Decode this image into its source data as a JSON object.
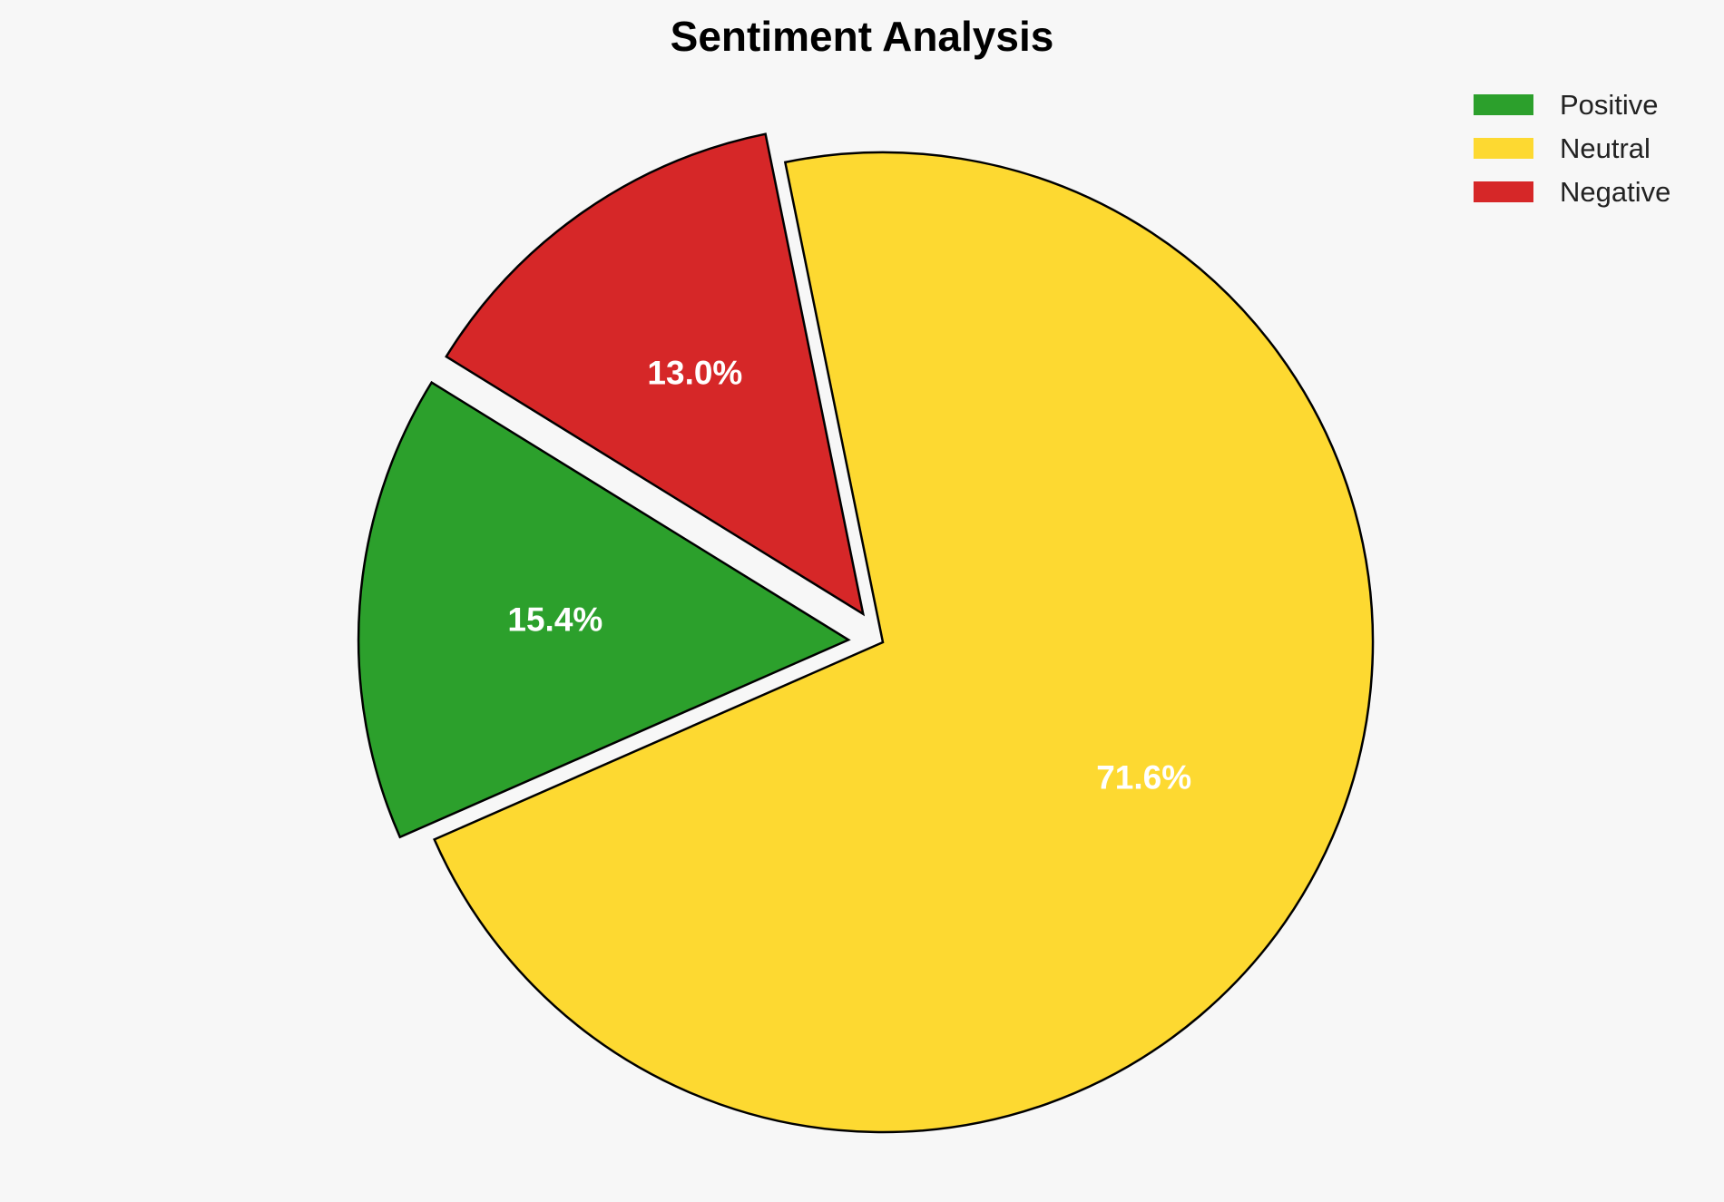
{
  "chart_data": {
    "type": "pie",
    "title": "Sentiment Analysis",
    "start_angle_deg": 148.3,
    "direction": "counterclockwise",
    "legend_position": "top-right",
    "slices": [
      {
        "label": "Positive",
        "value": 15.4,
        "display": "15.4%",
        "color": "#2ca02c",
        "exploded": true
      },
      {
        "label": "Neutral",
        "value": 71.6,
        "display": "71.6%",
        "color": "#fdd931",
        "exploded": false
      },
      {
        "label": "Negative",
        "value": 13.0,
        "display": "13.0%",
        "color": "#d62728",
        "exploded": true
      }
    ]
  }
}
